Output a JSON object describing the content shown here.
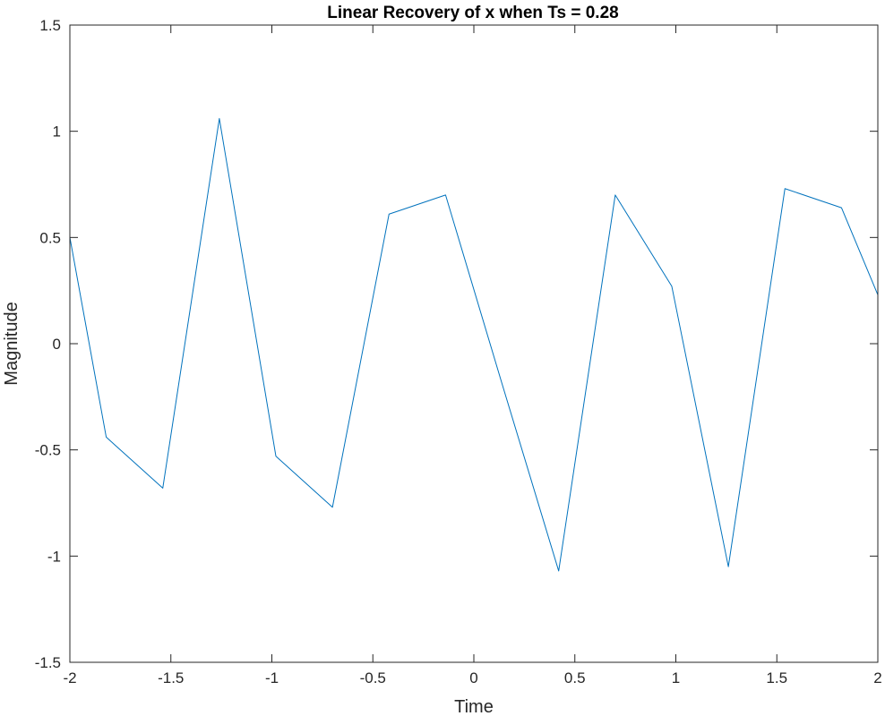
{
  "chart_data": {
    "type": "line",
    "title": "Linear Recovery of x when Ts = 0.28",
    "xlabel": "Time",
    "ylabel": "Magnitude",
    "xlim": [
      -2,
      2
    ],
    "ylim": [
      -1.5,
      1.5
    ],
    "xticks": [
      -2,
      -1.5,
      -1,
      -0.5,
      0,
      0.5,
      1,
      1.5,
      2
    ],
    "xtick_labels": [
      "-2",
      "-1.5",
      "-1",
      "-0.5",
      "0",
      "0.5",
      "1",
      "1.5",
      "2"
    ],
    "yticks": [
      -1.5,
      -1,
      -0.5,
      0,
      0.5,
      1,
      1.5
    ],
    "ytick_labels": [
      "-1.5",
      "-1",
      "-0.5",
      "0",
      "0.5",
      "1",
      "1.5"
    ],
    "grid": false,
    "line_color": "#0072BD",
    "series": [
      {
        "x": [
          -2.0,
          -1.82,
          -1.54,
          -1.26,
          -0.98,
          -0.7,
          -0.42,
          -0.14,
          0.14,
          0.42,
          0.7,
          0.98,
          1.26,
          1.54,
          1.82,
          2.0
        ],
        "y": [
          0.5,
          -0.44,
          -0.68,
          1.06,
          -0.53,
          -0.77,
          0.61,
          0.7,
          -0.19,
          -1.07,
          0.7,
          0.27,
          -1.05,
          0.73,
          0.64,
          0.23
        ]
      }
    ]
  }
}
